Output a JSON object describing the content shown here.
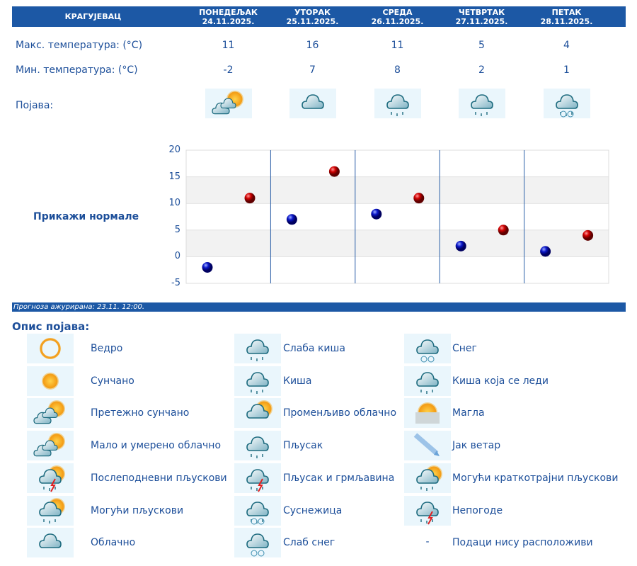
{
  "header": {
    "city": "КРАГУЈЕВАЦ",
    "days": [
      {
        "name": "ПОНЕДЕЉАК",
        "date": "24.11.2025."
      },
      {
        "name": "УТОРАК",
        "date": "25.11.2025."
      },
      {
        "name": "СРЕДА",
        "date": "26.11.2025."
      },
      {
        "name": "ЧЕТВРТАК",
        "date": "27.11.2025."
      },
      {
        "name": "ПЕТАК",
        "date": "28.11.2025."
      }
    ]
  },
  "rows": {
    "max_label": "Макс. температура: (°C)",
    "min_label": "Мин. температура: (°C)",
    "phen_label": "Појава:",
    "max": [
      "11",
      "16",
      "11",
      "5",
      "4"
    ],
    "min": [
      "-2",
      "7",
      "8",
      "2",
      "1"
    ],
    "icons": [
      "mostly-sunny-icon",
      "cloudy-icon",
      "rain-icon",
      "light-rain-icon",
      "sleet-icon"
    ]
  },
  "show_normals": "Прикажи нормале",
  "chart_data": {
    "type": "scatter",
    "ylim": [
      -5,
      20
    ],
    "yticks": [
      "20",
      "15",
      "10",
      "5",
      "0",
      "-5"
    ],
    "categories": [
      "24.11.2025.",
      "25.11.2025.",
      "26.11.2025.",
      "27.11.2025.",
      "28.11.2025."
    ],
    "series": [
      {
        "name": "min",
        "color": "#0a16c8",
        "values": [
          -2,
          7,
          8,
          2,
          1
        ]
      },
      {
        "name": "max",
        "color": "#d00000",
        "values": [
          11,
          16,
          11,
          5,
          4
        ]
      }
    ]
  },
  "updated": "Прогноза ажурирана:  23.11. 12:00.",
  "legend_title": "Опис појава:",
  "legend": [
    [
      {
        "icon": "clear-icon",
        "label": "Ведро"
      },
      {
        "icon": "sunny-icon",
        "label": "Сунчано"
      },
      {
        "icon": "mostly-sunny-icon",
        "label": "Претежно сунчано"
      },
      {
        "icon": "partly-cloudy-icon",
        "label": "Мало и умерено облачно"
      },
      {
        "icon": "afternoon-showers-icon",
        "label": "Послеподневни пљускови"
      },
      {
        "icon": "possible-showers-icon",
        "label": "Могући пљускови"
      },
      {
        "icon": "cloudy-icon",
        "label": "Облачно"
      }
    ],
    [
      {
        "icon": "light-rain-icon",
        "label": "Слаба киша"
      },
      {
        "icon": "rain-icon",
        "label": "Киша"
      },
      {
        "icon": "variable-cloudy-icon",
        "label": "Променљиво облачно"
      },
      {
        "icon": "shower-icon",
        "label": "Пљусак"
      },
      {
        "icon": "thunderstorm-icon",
        "label": "Пљусак и грмљавина"
      },
      {
        "icon": "sleet-icon",
        "label": "Суснежица"
      },
      {
        "icon": "light-snow-icon",
        "label": "Слаб снег"
      }
    ],
    [
      {
        "icon": "snow-icon",
        "label": "Снег"
      },
      {
        "icon": "freezing-rain-icon",
        "label": "Киша која се леди"
      },
      {
        "icon": "fog-icon",
        "label": "Магла"
      },
      {
        "icon": "strong-wind-icon",
        "label": "Јак ветар"
      },
      {
        "icon": "brief-showers-icon",
        "label": "Могући краткотрајни пљускови"
      },
      {
        "icon": "storm-icon",
        "label": "Непогоде"
      },
      {
        "icon": "",
        "dash": "-",
        "label": "Подаци нису расположиви"
      }
    ]
  ]
}
